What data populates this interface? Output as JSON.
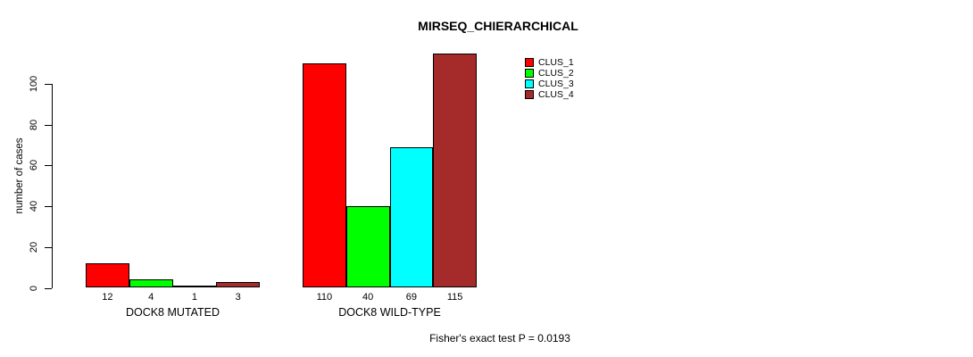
{
  "title": "MIRSEQ_CHIERARCHICAL",
  "footer": {
    "note": "Fisher's exact test P = 0.0193"
  },
  "chart_data": {
    "type": "bar",
    "title": "MIRSEQ_CHIERARCHICAL",
    "xlabel": "",
    "ylabel": "number of cases",
    "categories": [
      "DOCK8 MUTATED",
      "DOCK8 WILD-TYPE"
    ],
    "series": [
      {
        "name": "CLUS_1",
        "color": "#ff0000",
        "values": [
          12,
          110
        ]
      },
      {
        "name": "CLUS_2",
        "color": "#00ff00",
        "values": [
          4,
          40
        ]
      },
      {
        "name": "CLUS_3",
        "color": "#00ffff",
        "values": [
          1,
          69
        ]
      },
      {
        "name": "CLUS_4",
        "color": "#a52a2a",
        "values": [
          3,
          115
        ]
      }
    ],
    "bar_value_labels": {
      "DOCK8 MUTATED": [
        12,
        4,
        1,
        3
      ],
      "DOCK8 WILD-TYPE": [
        110,
        40,
        69,
        115
      ]
    },
    "yticks": [
      0,
      20,
      40,
      60,
      80,
      100
    ],
    "ylim": [
      0,
      115
    ],
    "grid": false,
    "legend": {
      "position": "top-right",
      "entries": [
        "CLUS_1",
        "CLUS_2",
        "CLUS_3",
        "CLUS_4"
      ]
    },
    "annotation": "Fisher's exact test P = 0.0193"
  }
}
